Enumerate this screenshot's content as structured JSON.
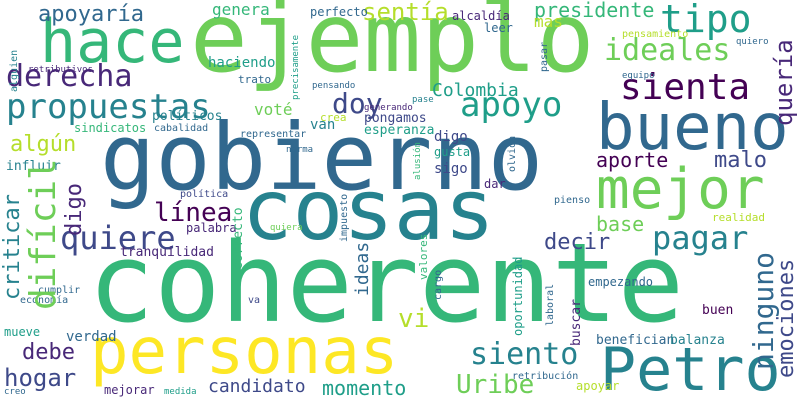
{
  "words": {
    "coherente": "coherente",
    "gobierno": "gobierno",
    "ejemplo": "ejemplo",
    "cosas": "cosas",
    "personas": "personas",
    "bueno": "bueno",
    "hace": "hace",
    "mejor": "mejor",
    "petro": "Petro",
    "propuestas": "propuestas",
    "derecha": "derecha",
    "tipo": "tipo",
    "ideales": "ideales",
    "sienta": "sienta",
    "apoyo": "apoyo",
    "pagar": "pagar",
    "quiere": "quiere",
    "linea": "línea",
    "dificil": "difícil",
    "criticar": "criticar",
    "siento": "siento",
    "ninguno": "ninguno",
    "emociones": "emociones",
    "queria": "quería",
    "uribe": "Uribe",
    "hogar": "hogar",
    "momento": "momento",
    "candidato": "candidato",
    "aporte": "aporte",
    "decir": "decir",
    "malo": "malo",
    "debe": "debe",
    "apoyaria": "apoyaría",
    "sentia": "sentía",
    "presidente": "presidente",
    "doy": "doy",
    "digo": "digo",
    "algun": "algún",
    "colombia": "Colombia",
    "base": "base",
    "ideas": "ideas",
    "vi": "vi",
    "genera": "genera",
    "perfecto": "perfecto",
    "alcaldia": "alcaldía",
    "mas": "mas",
    "leer": "leer",
    "haciendo": "haciendo",
    "pongamos": "pongamos",
    "vote": "voté",
    "van": "van",
    "esperanza": "esperanza",
    "politicos": "políticos",
    "trato": "trato",
    "crea": "crea",
    "sindicatos": "sindicatos",
    "cabalidad": "cabalidad",
    "representar": "representar",
    "tranquilidad": "tranquilidad",
    "palabra": "palabra",
    "politica": "política",
    "correcto": "correcto",
    "quiera": "quiera",
    "valores": "valores",
    "cargo": "cargo",
    "oportunidad": "oportunidad",
    "laboral": "laboral",
    "empezando": "empezando",
    "benefician": "benefician",
    "balanza": "balanza",
    "buen": "buen",
    "buscar": "buscar",
    "apoyar": "apoyar",
    "retribucion": "retribución",
    "verdad": "verdad",
    "mueve": "mueve",
    "economia": "economía",
    "cumplir": "cumplir",
    "va": "va",
    "mejorar": "mejorar",
    "medida": "medida",
    "creo": "creo",
    "influir": "influir",
    "alguien": "alguien",
    "retributivos": "retributivos",
    "precisamente": "precisamente",
    "pensando": "pensando",
    "generando": "generando",
    "pase": "pase",
    "pasar": "pasar",
    "pensamiento": "pensamiento",
    "quiero": "quiero",
    "equipo": "equipo",
    "norma": "norma",
    "alusion": "alusión",
    "gusta": "gusta",
    "sigo": "sigo",
    "olvida": "olvida",
    "dar": "dar",
    "pienso": "pienso",
    "impuesto": "impuesto",
    "realidad": "realidad"
  },
  "colors": {
    "yellow": "#fde725",
    "lime": "#b5de2b",
    "lightgreen": "#6ece58",
    "green": "#35b779",
    "teal": "#1f9e89",
    "tealblue": "#26828e",
    "blue": "#31688e",
    "indigo": "#3e4989",
    "purple": "#482878",
    "darkpurple": "#440154"
  }
}
